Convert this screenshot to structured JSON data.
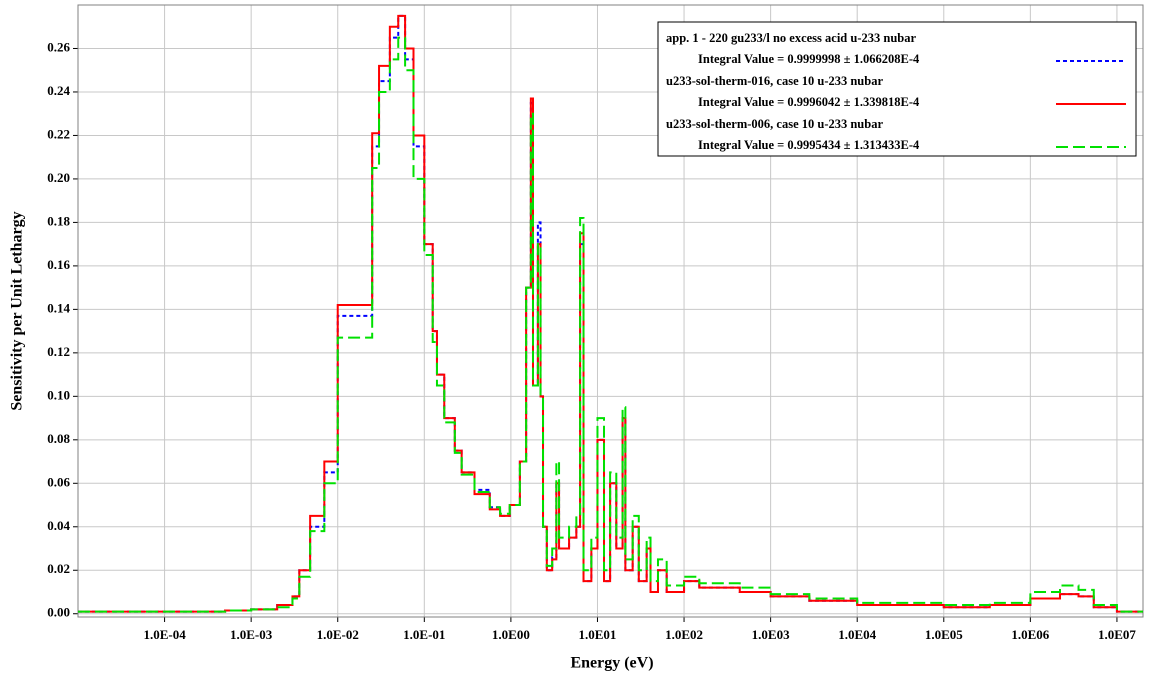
{
  "chart_data": {
    "type": "line",
    "step": true,
    "x_label": "Energy (eV)",
    "y_label": "Sensitivity per Unit Lethargy",
    "xscale": "log",
    "grid": true,
    "legend": "upper right",
    "xlim": [
      1e-05,
      20000000
    ],
    "ylim": [
      -0.0015,
      0.28
    ],
    "xticks": [
      {
        "value": 0.0001,
        "label": "1.0E-04"
      },
      {
        "value": 0.001,
        "label": "1.0E-03"
      },
      {
        "value": 0.01,
        "label": "1.0E-02"
      },
      {
        "value": 0.1,
        "label": "1.0E-01"
      },
      {
        "value": 1,
        "label": "1.0E00"
      },
      {
        "value": 10,
        "label": "1.0E01"
      },
      {
        "value": 100,
        "label": "1.0E02"
      },
      {
        "value": 1000,
        "label": "1.0E03"
      },
      {
        "value": 10000,
        "label": "1.0E04"
      },
      {
        "value": 100000,
        "label": "1.0E05"
      },
      {
        "value": 1000000,
        "label": "1.0E06"
      },
      {
        "value": 10000000,
        "label": "1.0E07"
      }
    ],
    "yticks": [
      {
        "value": 0,
        "label": "0.00"
      },
      {
        "value": 0.02,
        "label": "0.02"
      },
      {
        "value": 0.04,
        "label": "0.04"
      },
      {
        "value": 0.06,
        "label": "0.06"
      },
      {
        "value": 0.08,
        "label": "0.08"
      },
      {
        "value": 0.1,
        "label": "0.10"
      },
      {
        "value": 0.12,
        "label": "0.12"
      },
      {
        "value": 0.14,
        "label": "0.14"
      },
      {
        "value": 0.16,
        "label": "0.16"
      },
      {
        "value": 0.18,
        "label": "0.18"
      },
      {
        "value": 0.2,
        "label": "0.20"
      },
      {
        "value": 0.22,
        "label": "0.22"
      },
      {
        "value": 0.24,
        "label": "0.24"
      },
      {
        "value": 0.26,
        "label": "0.26"
      }
    ],
    "x": [
      1e-05,
      0.0005,
      0.001,
      0.002,
      0.003,
      0.0036,
      0.0048,
      0.007,
      0.01,
      0.025,
      0.03,
      0.04,
      0.05,
      0.06,
      0.075,
      0.1,
      0.125,
      0.14,
      0.17,
      0.225,
      0.27,
      0.38,
      0.57,
      0.75,
      0.97,
      1.27,
      1.5,
      1.7,
      1.8,
      2.05,
      2.2,
      2.35,
      2.6,
      3,
      3.35,
      3.6,
      4.7,
      5.7,
      6.3,
      6.9,
      8.5,
      10,
      11.9,
      14,
      16.5,
      19.5,
      21,
      25.5,
      30,
      37,
      41,
      50,
      63,
      100,
      150,
      260,
      440,
      1000,
      2800,
      10000,
      100000,
      340000,
      1000000,
      2200000,
      3600000,
      5400000,
      10000000,
      20000000
    ],
    "series": [
      {
        "name": "app. 1 - 220 gu233/l no excess acid u-233 nubar",
        "note": "Integral Value = 0.9999998 ± 1.066208E-4",
        "color": "#0000ff",
        "dash": "4 3",
        "values": [
          0.001,
          0.0015,
          0.002,
          0.004,
          0.008,
          0.02,
          0.04,
          0.065,
          0.137,
          0.215,
          0.245,
          0.265,
          0.275,
          0.255,
          0.215,
          0.17,
          0.13,
          0.11,
          0.09,
          0.075,
          0.065,
          0.057,
          0.049,
          0.045,
          0.05,
          0.07,
          0.15,
          0.235,
          0.105,
          0.18,
          0.1,
          0.04,
          0.02,
          0.026,
          0.06,
          0.03,
          0.035,
          0.04,
          0.17,
          0.015,
          0.03,
          0.08,
          0.015,
          0.06,
          0.03,
          0.09,
          0.02,
          0.04,
          0.015,
          0.03,
          0.01,
          0.02,
          0.01,
          0.015,
          0.012,
          0.012,
          0.01,
          0.008,
          0.006,
          0.004,
          0.003,
          0.004,
          0.007,
          0.009,
          0.008,
          0.003,
          0.001,
          0.001
        ]
      },
      {
        "name": "u233-sol-therm-016, case 10 u-233 nubar",
        "note": "Integral Value = 0.9996042 ± 1.339818E-4",
        "color": "#ff0000",
        "dash": "",
        "values": [
          0.001,
          0.0015,
          0.002,
          0.004,
          0.008,
          0.02,
          0.045,
          0.07,
          0.142,
          0.221,
          0.252,
          0.27,
          0.275,
          0.26,
          0.22,
          0.17,
          0.13,
          0.11,
          0.09,
          0.075,
          0.065,
          0.055,
          0.048,
          0.045,
          0.05,
          0.07,
          0.15,
          0.237,
          0.105,
          0.17,
          0.1,
          0.04,
          0.02,
          0.025,
          0.06,
          0.03,
          0.035,
          0.04,
          0.175,
          0.015,
          0.03,
          0.08,
          0.015,
          0.06,
          0.03,
          0.09,
          0.02,
          0.04,
          0.015,
          0.03,
          0.01,
          0.02,
          0.01,
          0.015,
          0.012,
          0.012,
          0.01,
          0.008,
          0.006,
          0.004,
          0.003,
          0.004,
          0.007,
          0.009,
          0.008,
          0.003,
          0.001,
          0.001
        ]
      },
      {
        "name": "u233-sol-therm-006, case 10 u-233 nubar",
        "note": "Integral Value = 0.9995434 ± 1.313433E-4",
        "color": "#00e000",
        "dash": "12 5",
        "values": [
          0.001,
          0.0015,
          0.002,
          0.003,
          0.007,
          0.017,
          0.038,
          0.06,
          0.127,
          0.205,
          0.24,
          0.255,
          0.265,
          0.25,
          0.2,
          0.165,
          0.125,
          0.105,
          0.088,
          0.074,
          0.064,
          0.056,
          0.049,
          0.046,
          0.05,
          0.07,
          0.15,
          0.23,
          0.105,
          0.17,
          0.1,
          0.04,
          0.022,
          0.03,
          0.07,
          0.035,
          0.04,
          0.045,
          0.182,
          0.02,
          0.035,
          0.09,
          0.02,
          0.065,
          0.035,
          0.095,
          0.025,
          0.045,
          0.02,
          0.035,
          0.015,
          0.025,
          0.013,
          0.017,
          0.014,
          0.014,
          0.012,
          0.009,
          0.007,
          0.005,
          0.004,
          0.005,
          0.01,
          0.013,
          0.011,
          0.004,
          0.001,
          0.001
        ]
      }
    ]
  }
}
